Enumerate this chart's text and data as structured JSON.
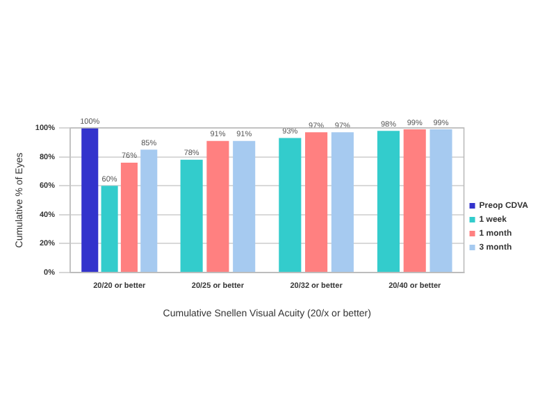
{
  "chart_data": {
    "type": "bar",
    "xlabel": "Cumulative Snellen Visual Acuity (20/x or better)",
    "ylabel": "Cumulative % of Eyes",
    "categories": [
      "20/20 or better",
      "20/25 or better",
      "20/32 or better",
      "20/40 or better"
    ],
    "series": [
      {
        "name": "Preop CDVA",
        "color": "#3333cc",
        "values": [
          100,
          null,
          null,
          null
        ],
        "value_labels": [
          "100%",
          null,
          null,
          null
        ]
      },
      {
        "name": "1 week",
        "color": "#33cccc",
        "values": [
          60,
          78,
          93,
          98
        ],
        "value_labels": [
          "60%",
          "78%",
          "93%",
          "98%"
        ]
      },
      {
        "name": "1 month",
        "color": "#ff8080",
        "values": [
          76,
          91,
          97,
          99
        ],
        "value_labels": [
          "76%",
          "91%",
          "97%",
          "99%"
        ]
      },
      {
        "name": "3 month",
        "color": "#a6caf0",
        "values": [
          85,
          91,
          97,
          99
        ],
        "value_labels": [
          "85%",
          "91%",
          "97%",
          "99%"
        ]
      }
    ],
    "ylim": [
      0,
      100
    ],
    "yticks": [
      {
        "value": 0,
        "label": "0%"
      },
      {
        "value": 20,
        "label": "20%"
      },
      {
        "value": 40,
        "label": "40%"
      },
      {
        "value": 60,
        "label": "60%"
      },
      {
        "value": 80,
        "label": "80%"
      },
      {
        "value": 100,
        "label": "100%"
      }
    ],
    "grid": "y",
    "legend": "right"
  }
}
